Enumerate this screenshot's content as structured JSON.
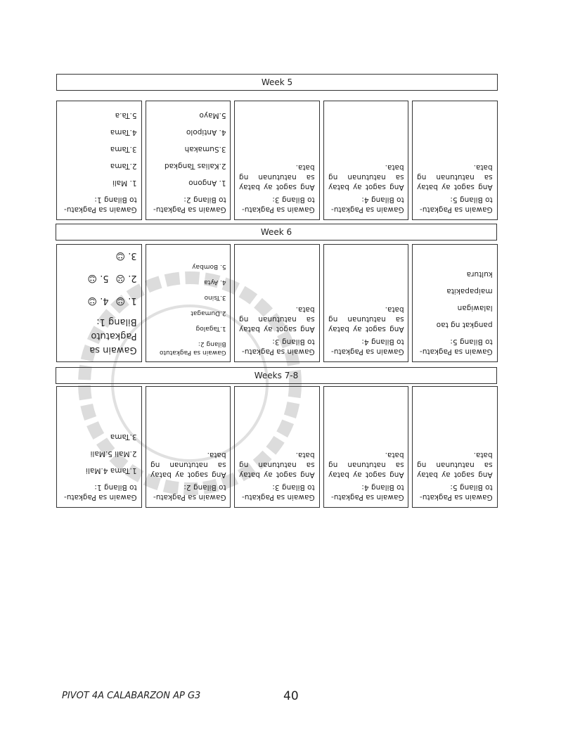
{
  "weeks": [
    {
      "label": "Week 5",
      "cells": [
        {
          "lines": [
            "Gawain sa Pagkatu-",
            "to Bilang 1:",
            "1. Mali",
            "2.Tama",
            "3.Tama",
            "4.Tama",
            "5.Ta.a"
          ],
          "mode": "list"
        },
        {
          "lines": [
            "Gawain sa Pagkatu-",
            "to Bilang 2:",
            "1. Angono",
            "2.Kalias Tangkad",
            "3.Sumakah",
            "4. Antipolo",
            "5.Mayo"
          ],
          "mode": "list"
        },
        {
          "lines": [
            "Gawain sa Pagkatu-",
            "to Bilang 3:"
          ],
          "body": "Ang sagot ay batay sa natutunan ng bata."
        },
        {
          "lines": [
            "Gawain sa Pagkatu-",
            "to Bilang 4:"
          ],
          "body": "Ang sagot ay batay sa natutunan ng bata."
        },
        {
          "lines": [
            "Gawain sa Pagkatu-",
            "to Bilang 5:"
          ],
          "body": "Ang sagot ay batay sa natutunan ng bata."
        }
      ]
    },
    {
      "label": "Week 6",
      "cells": [
        {
          "lines": [
            "Gawain sa",
            "Pagkatuto",
            "Bilang 1:"
          ],
          "mode": "big",
          "smiles": [
            "1. ☺",
            "4. ☺",
            "2. ☹",
            "5. ☺",
            "3. ☺"
          ]
        },
        {
          "lines": [
            "Gawain sa Pagkatuto",
            "Bilang 2:",
            "1.Tagalog",
            "2.Dumagat",
            "3.Tsino",
            "4. Ayta",
            "5. Bombay"
          ],
          "mode": "small"
        },
        {
          "lines": [
            "Gawain sa Pagkatu-",
            "to Bilang 3:"
          ],
          "body": "Ang sagot ay batay sa natutunan ng bata."
        },
        {
          "lines": [
            "Gawain sa Pagkatu-",
            "to Bilang 4:"
          ],
          "body": "Ang sagot ay batay sa natutunan ng bata."
        },
        {
          "lines": [
            "Gawain sa Pagkatu-",
            "to Bilang 5:",
            "pangkat ng tao",
            "lalawigan",
            "maipapakita",
            "kultura"
          ],
          "mode": "list"
        }
      ]
    },
    {
      "label": "Weeks 7-8",
      "cells": [
        {
          "lines": [
            "Gawain sa Pagkatu-",
            "to Bilang 1:",
            "1.Tama     4.Mali",
            "2.Mali      5.Mali",
            "3.Tama"
          ],
          "mode": "list"
        },
        {
          "lines": [
            "Gawain sa Pagkatu-",
            "to Bilang 2:"
          ],
          "body": "Ang sagot ay batay sa natutunan ng bata."
        },
        {
          "lines": [
            "Gawain sa Pagkatu-",
            "to Bilang 3:"
          ],
          "body": "Ang sagot ay batay sa natutunan ng bata."
        },
        {
          "lines": [
            "Gawain sa Pagkatu-",
            "to Bilang 4:"
          ],
          "body": "Ang sagot ay batay sa natutunan ng bata."
        },
        {
          "lines": [
            "Gawain sa Pagkatu-",
            "to Bilang 5:"
          ],
          "body": "Ang sagot ay batay sa natutunan ng bata."
        }
      ]
    }
  ],
  "footer": {
    "title": "PIVOT 4A CALABARZON AP G3",
    "page_number": "40"
  }
}
